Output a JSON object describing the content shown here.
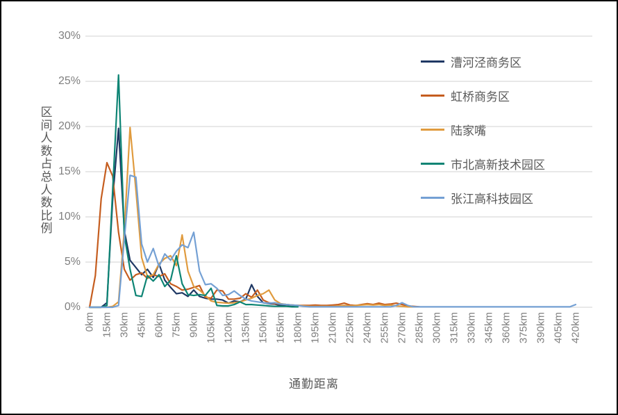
{
  "chart_data": {
    "type": "line",
    "title": "",
    "xlabel": "通勤距离",
    "ylabel": "区间人数占总人数比例",
    "y_ticks": [
      "0%",
      "5%",
      "10%",
      "15%",
      "20%",
      "25%",
      "30%"
    ],
    "ylim": [
      0,
      30
    ],
    "x_ticks": [
      "0km",
      "15km",
      "30km",
      "45km",
      "60km",
      "75km",
      "90km",
      "105km",
      "120km",
      "135km",
      "150km",
      "165km",
      "180km",
      "195km",
      "210km",
      "225km",
      "240km",
      "255km",
      "270km",
      "285km",
      "300km",
      "315km",
      "330km",
      "345km",
      "360km",
      "375km",
      "390km",
      "405km",
      "420km"
    ],
    "xlim_km": [
      0,
      420
    ],
    "x_step_km": 5,
    "grid": "horizontal-only",
    "legend_position": "inside-top-right",
    "grid_color": "#d9d9d9",
    "tick_label_color": "#7f7f7f",
    "axis_title_color": "#595959",
    "series": [
      {
        "name": "漕河泾商务区",
        "color": "#1f3864",
        "values": [
          0,
          0,
          0,
          0.5,
          12,
          19.8,
          8.5,
          5.2,
          4.4,
          3.6,
          4.2,
          3.3,
          4.8,
          3,
          2.2,
          1.5,
          1.6,
          1.2,
          1.9,
          1.2,
          1,
          0.9,
          0.9,
          0.8,
          0.45,
          0.7,
          0.6,
          0.9,
          2.5,
          1.2,
          0.5,
          0.4,
          0.35,
          0.2,
          0.15,
          0.1,
          0.1
        ]
      },
      {
        "name": "虹桥商务区",
        "color": "#c55d1f",
        "values": [
          0,
          3.5,
          12,
          16,
          14.5,
          8.3,
          4.2,
          3,
          3.6,
          3.8,
          3.2,
          3.6,
          3.4,
          3.7,
          2.6,
          2.3,
          1.9,
          2,
          2.2,
          2.4,
          1.1,
          1,
          1.9,
          1.8,
          0.9,
          0.9,
          1,
          1.5,
          1.1,
          1.9,
          0.8,
          0.5,
          0.4,
          0.35,
          0.3,
          0.25,
          0.2,
          0.2,
          0.2,
          0.25,
          0.2,
          0.2,
          0.25,
          0.3,
          0.45,
          0.25,
          0.2,
          0.3,
          0.4,
          0.3,
          0.45,
          0.3,
          0.35,
          0.45,
          0.3,
          0.15,
          0.1,
          0.05
        ]
      },
      {
        "name": "陆家嘴",
        "color": "#e09b3e",
        "values": [
          0,
          0,
          0,
          0,
          0.1,
          0.6,
          8.5,
          19.9,
          13,
          5.5,
          3.4,
          3.6,
          4.8,
          5.4,
          5.7,
          4.6,
          8,
          4,
          2.3,
          1.9,
          1.3,
          0.7,
          0.55,
          0.5,
          0.45,
          0.5,
          0.6,
          0.8,
          1,
          1.3,
          1.5,
          1.9,
          0.8,
          0.4,
          0.3,
          0.25,
          0.2,
          0.15,
          0.1,
          0.1,
          0.1,
          0.1,
          0.1,
          0.15,
          0.2,
          0.15,
          0.2,
          0.25,
          0.3,
          0.25,
          0.3,
          0.2,
          0.25,
          0.15,
          0.1,
          0.05,
          0.05
        ]
      },
      {
        "name": "市北高新技术园区",
        "color": "#0d8474",
        "values": [
          0,
          0,
          0,
          0.2,
          13,
          25.7,
          8,
          4.2,
          1.3,
          1.2,
          3.5,
          2.9,
          3.6,
          2.3,
          3,
          5.7,
          2.6,
          1.4,
          1.3,
          1.4,
          1.3,
          2.1,
          0.2,
          0.15,
          0.15,
          0.3,
          0.6,
          0.3,
          0.3,
          0.25,
          0.2,
          0.15,
          0.1,
          0.1,
          0.1,
          0.05,
          0.05
        ]
      },
      {
        "name": "张江高科技园区",
        "color": "#74a0d4",
        "values": [
          0,
          0,
          0,
          0,
          0,
          0.2,
          7.5,
          14.6,
          14.4,
          7,
          5,
          6.5,
          4.5,
          5.9,
          5.2,
          6.2,
          6.9,
          6.6,
          8.3,
          4,
          2.5,
          2.6,
          2.1,
          1.3,
          1.4,
          1.8,
          1.3,
          0.9,
          0.7,
          0.6,
          0.5,
          0.45,
          0.5,
          0.35,
          0.3,
          0.25,
          0.2,
          0.1,
          0.05,
          0.05,
          0.05,
          0.05,
          0.05,
          0.05,
          0.05,
          0.05,
          0.05,
          0.05,
          0.05,
          0.05,
          0.05,
          0.05,
          0.05,
          0.2,
          0.5,
          0.2,
          0.05,
          0.05,
          0.05,
          0.05,
          0.05,
          0.05,
          0.05,
          0.05,
          0.05,
          0.05,
          0.05,
          0.05,
          0.05,
          0.05,
          0.05,
          0.05,
          0.05,
          0.05,
          0.05,
          0.05,
          0.05,
          0.05,
          0.05,
          0.05,
          0.05,
          0.05,
          0.05,
          0.05,
          0.3
        ]
      }
    ]
  }
}
